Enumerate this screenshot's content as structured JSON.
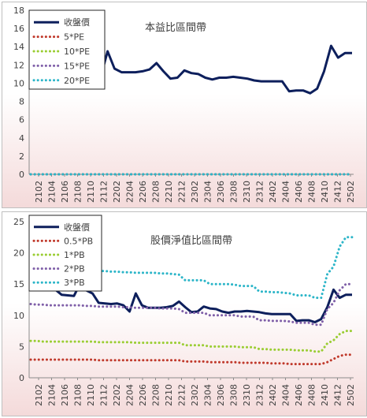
{
  "chart_data": [
    {
      "type": "line",
      "title": "本益比區間帶",
      "ylim": [
        0,
        18
      ],
      "yticks": [
        0,
        2,
        4,
        6,
        8,
        10,
        12,
        14,
        16,
        18
      ],
      "xtick_labels": [
        "2102",
        "2104",
        "2106",
        "2108",
        "2110",
        "2112",
        "2202",
        "2204",
        "2206",
        "2208",
        "2210",
        "2212",
        "2302",
        "2304",
        "2306",
        "2308",
        "2310",
        "2312",
        "2402",
        "2404",
        "2406",
        "2408",
        "2410",
        "2412",
        "2502"
      ],
      "legend_position": "top-left",
      "grid": false,
      "series": [
        {
          "name": "收盤價",
          "color": "#0d1f5c",
          "style": "solid",
          "values": [
            13.4,
            13.0,
            13.0,
            12.5,
            12.4,
            13.5,
            12.0,
            11.9,
            11.8,
            11.6,
            10.6,
            13.5,
            11.6,
            11.2,
            11.2,
            11.2,
            11.3,
            11.5,
            12.2,
            11.3,
            10.5,
            10.6,
            11.4,
            11.1,
            11.0,
            10.6,
            10.4,
            10.6,
            10.6,
            10.7,
            10.6,
            10.5,
            10.3,
            10.2,
            10.2,
            10.2,
            10.2,
            9.1,
            9.2,
            9.2,
            8.9,
            9.4,
            11.3,
            14.1,
            12.8,
            13.3,
            13.3
          ]
        },
        {
          "name": "5*PE",
          "color": "#c0392b",
          "style": "dotted",
          "values": [
            0
          ]
        },
        {
          "name": "10*PE",
          "color": "#9acd32",
          "style": "dotted",
          "values": [
            0
          ]
        },
        {
          "name": "15*PE",
          "color": "#7f5fa8",
          "style": "dotted",
          "values": [
            0
          ]
        },
        {
          "name": "20*PE",
          "color": "#2bb5c8",
          "style": "dotted",
          "values": [
            0
          ]
        }
      ]
    },
    {
      "type": "line",
      "title": "股價淨值比區間帶",
      "ylim": [
        0,
        25
      ],
      "yticks": [
        0,
        5,
        10,
        15,
        20,
        25
      ],
      "xtick_labels": [
        "2102",
        "2104",
        "2106",
        "2108",
        "2110",
        "2112",
        "2202",
        "2204",
        "2206",
        "2208",
        "2210",
        "2212",
        "2302",
        "2304",
        "2306",
        "2308",
        "2310",
        "2312",
        "2402",
        "2404",
        "2406",
        "2408",
        "2410",
        "2412",
        "2502"
      ],
      "legend_position": "top-left",
      "grid": false,
      "series": [
        {
          "name": "收盤價",
          "color": "#0d1f5c",
          "style": "solid",
          "values": [
            15.5,
            15.0,
            14.2,
            14.2,
            14.1,
            13.3,
            13.2,
            13.1,
            15.1,
            14.0,
            13.5,
            12.0,
            11.9,
            11.8,
            11.9,
            11.6,
            10.6,
            13.5,
            11.6,
            11.2,
            11.2,
            11.2,
            11.3,
            11.5,
            12.2,
            11.3,
            10.5,
            10.6,
            11.4,
            11.1,
            11.0,
            10.6,
            10.4,
            10.6,
            10.6,
            10.7,
            10.6,
            10.5,
            10.3,
            10.2,
            10.2,
            10.2,
            10.2,
            9.1,
            9.2,
            9.2,
            8.9,
            9.4,
            11.3,
            14.1,
            12.8,
            13.3,
            13.3
          ]
        },
        {
          "name": "0.5*PB",
          "color": "#c0392b",
          "style": "dotted",
          "values": [
            2.9,
            2.9,
            2.9,
            2.9,
            2.9,
            2.9,
            2.9,
            2.9,
            2.9,
            2.9,
            2.9,
            2.8,
            2.8,
            2.8,
            2.8,
            2.8,
            2.8,
            2.8,
            2.8,
            2.8,
            2.8,
            2.8,
            2.8,
            2.8,
            2.8,
            2.6,
            2.6,
            2.6,
            2.6,
            2.5,
            2.5,
            2.5,
            2.5,
            2.5,
            2.4,
            2.4,
            2.4,
            2.4,
            2.4,
            2.3,
            2.3,
            2.3,
            2.2,
            2.2,
            2.2,
            2.2,
            2.2,
            2.2,
            2.5,
            3.0,
            3.5,
            3.7,
            3.7
          ]
        },
        {
          "name": "1*PB",
          "color": "#9acd32",
          "style": "dotted",
          "values": [
            5.9,
            5.9,
            5.8,
            5.8,
            5.8,
            5.8,
            5.8,
            5.8,
            5.8,
            5.8,
            5.8,
            5.7,
            5.7,
            5.7,
            5.7,
            5.7,
            5.7,
            5.6,
            5.6,
            5.6,
            5.6,
            5.6,
            5.6,
            5.6,
            5.6,
            5.2,
            5.2,
            5.2,
            5.2,
            5.0,
            5.0,
            5.0,
            5.0,
            5.0,
            4.9,
            4.9,
            4.9,
            4.6,
            4.6,
            4.5,
            4.5,
            4.5,
            4.5,
            4.4,
            4.4,
            4.4,
            4.2,
            4.2,
            5.5,
            6.0,
            7.0,
            7.5,
            7.5
          ]
        },
        {
          "name": "2*PB",
          "color": "#7f5fa8",
          "style": "dotted",
          "values": [
            11.8,
            11.7,
            11.7,
            11.6,
            11.6,
            11.6,
            11.6,
            11.6,
            11.6,
            11.5,
            11.5,
            11.4,
            11.4,
            11.4,
            11.4,
            11.3,
            11.3,
            11.2,
            11.2,
            11.2,
            11.2,
            11.1,
            11.1,
            11.1,
            11.0,
            10.4,
            10.4,
            10.4,
            10.4,
            10.0,
            10.0,
            10.0,
            10.0,
            10.0,
            9.8,
            9.8,
            9.8,
            9.2,
            9.2,
            9.1,
            9.1,
            9.1,
            9.0,
            8.8,
            8.8,
            8.8,
            8.5,
            8.5,
            11.0,
            12.0,
            14.0,
            15.0,
            15.0
          ]
        },
        {
          "name": "3*PB",
          "color": "#2bb5c8",
          "style": "dotted",
          "values": [
            17.7,
            17.6,
            17.5,
            17.4,
            17.4,
            17.4,
            17.4,
            17.3,
            17.3,
            17.2,
            17.2,
            17.1,
            17.1,
            17.0,
            17.0,
            16.9,
            16.9,
            16.8,
            16.8,
            16.8,
            16.8,
            16.7,
            16.7,
            16.6,
            16.5,
            15.6,
            15.6,
            15.6,
            15.6,
            15.0,
            15.0,
            15.0,
            15.0,
            14.9,
            14.7,
            14.7,
            14.7,
            13.8,
            13.8,
            13.7,
            13.7,
            13.6,
            13.5,
            13.2,
            13.2,
            13.2,
            12.8,
            12.8,
            16.6,
            17.8,
            21.0,
            22.5,
            22.5
          ]
        }
      ]
    }
  ]
}
